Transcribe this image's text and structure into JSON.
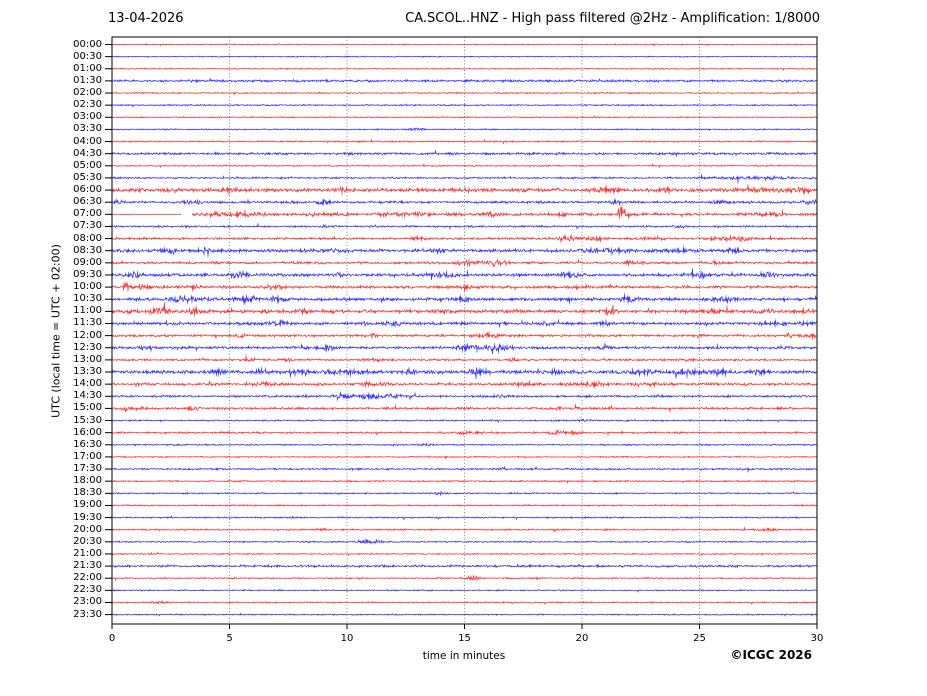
{
  "header": {
    "date": "13-04-2026",
    "title": "CA.SCOL..HNZ - High pass filtered @2Hz - Amplification: 1/8000"
  },
  "footer": {
    "copyright": "©ICGC 2026"
  },
  "chart_data": {
    "type": "line",
    "subtype": "helicorder-24h",
    "title": "CA.SCOL..HNZ - High pass filtered @2Hz - Amplification: 1/8000",
    "xlabel": "time in minutes",
    "ylabel": "UTC (local time = UTC + 02:00)",
    "xlim": [
      0,
      30
    ],
    "x_ticks": [
      "0",
      "5",
      "10",
      "15",
      "20",
      "25",
      "30"
    ],
    "x_tick_values": [
      0,
      5,
      10,
      15,
      20,
      25,
      30
    ],
    "grid": "vertical dotted lines every 5 minutes",
    "legend": "none",
    "colors": {
      "red": "#ff0000",
      "blue": "#0000ff",
      "grid": "#555555",
      "frame": "#000000",
      "text": "#000000"
    },
    "row_minutes": 30,
    "notable_event": {
      "row": "07:00",
      "minute": 21.7,
      "description": "large impulsive spike on the 07:00 UTC trace"
    },
    "rows": [
      {
        "t": "00:00",
        "color": "red",
        "amp": 0.4
      },
      {
        "t": "00:30",
        "color": "blue",
        "amp": 0.4
      },
      {
        "t": "01:00",
        "color": "red",
        "amp": 0.4
      },
      {
        "t": "01:30",
        "color": "blue",
        "amp": 0.8
      },
      {
        "t": "02:00",
        "color": "red",
        "amp": 0.45
      },
      {
        "t": "02:30",
        "color": "blue",
        "amp": 0.5
      },
      {
        "t": "03:00",
        "color": "red",
        "amp": 0.4
      },
      {
        "t": "03:30",
        "color": "blue",
        "amp": 0.45,
        "bursts": [
          [
            13,
            0.3,
            0.7
          ]
        ]
      },
      {
        "t": "04:00",
        "color": "red",
        "amp": 0.5
      },
      {
        "t": "04:30",
        "color": "blue",
        "amp": 0.85
      },
      {
        "t": "05:00",
        "color": "red",
        "amp": 0.45
      },
      {
        "t": "05:30",
        "color": "blue",
        "amp": 0.6,
        "bursts": [
          [
            27.5,
            2.0,
            0.8
          ]
        ]
      },
      {
        "t": "06:00",
        "color": "red",
        "amp": 1.3,
        "bursts": [
          [
            5,
            0.3,
            1.2
          ],
          [
            10,
            0.5,
            0.8
          ],
          [
            15,
            0.3,
            1.0
          ],
          [
            21,
            0.4,
            1.0
          ],
          [
            23.5,
            0.3,
            1.2
          ],
          [
            27.5,
            1.0,
            1.2
          ],
          [
            29.3,
            0.5,
            1.5
          ]
        ]
      },
      {
        "t": "06:30",
        "color": "blue",
        "amp": 0.85,
        "bursts": [
          [
            0.3,
            0.2,
            1.5
          ],
          [
            3.5,
            0.4,
            1.0
          ],
          [
            9,
            0.3,
            0.8
          ],
          [
            21.5,
            0.3,
            0.9
          ],
          [
            26,
            0.5,
            0.8
          ],
          [
            29.6,
            0.4,
            1.2
          ]
        ]
      },
      {
        "t": "07:00",
        "color": "red",
        "amp": 1.05,
        "pre": {
          "until": 3.4,
          "amp": 0.25
        },
        "gap": [
          2.95,
          3.4
        ],
        "bursts": [
          [
            4.5,
            0.5,
            1.2
          ],
          [
            6,
            0.8,
            1.0
          ],
          [
            9,
            0.6,
            1.0
          ],
          [
            12.5,
            1.0,
            0.9
          ],
          [
            16,
            0.5,
            0.8
          ],
          [
            19,
            0.4,
            0.8
          ],
          [
            21.55,
            0.05,
            3.0
          ],
          [
            21.68,
            0.07,
            9.0
          ],
          [
            21.85,
            0.15,
            2.5
          ],
          [
            28,
            0.5,
            0.8
          ]
        ]
      },
      {
        "t": "07:30",
        "color": "blue",
        "amp": 0.65,
        "bursts": [
          [
            9,
            0.3,
            0.7
          ],
          [
            24,
            0.3,
            0.7
          ]
        ]
      },
      {
        "t": "08:00",
        "color": "red",
        "amp": 0.8,
        "bursts": [
          [
            13,
            0.3,
            1.0
          ],
          [
            19.5,
            0.5,
            1.3
          ],
          [
            20.5,
            0.3,
            1.0
          ],
          [
            23,
            0.4,
            1.2
          ],
          [
            26,
            0.6,
            1.4
          ],
          [
            27,
            0.3,
            1.2
          ]
        ]
      },
      {
        "t": "08:30",
        "color": "blue",
        "amp": 1.15,
        "bursts": [
          [
            2.5,
            0.4,
            1.4
          ],
          [
            4,
            0.3,
            1.6
          ],
          [
            9,
            0.5,
            1.2
          ],
          [
            13.8,
            0.3,
            1.3
          ],
          [
            21,
            0.8,
            1.3
          ],
          [
            24,
            0.5,
            1.2
          ],
          [
            26.5,
            0.3,
            1.4
          ]
        ]
      },
      {
        "t": "09:00",
        "color": "red",
        "amp": 0.85,
        "bursts": [
          [
            8,
            0.3,
            0.9
          ],
          [
            15.3,
            0.8,
            1.5
          ],
          [
            16.5,
            0.4,
            1.2
          ],
          [
            22,
            0.4,
            0.9
          ],
          [
            26,
            0.3,
            0.8
          ]
        ]
      },
      {
        "t": "09:30",
        "color": "blue",
        "amp": 1.1,
        "bursts": [
          [
            1,
            0.3,
            1.2
          ],
          [
            5.5,
            0.5,
            1.4
          ],
          [
            9.5,
            0.3,
            1.1
          ],
          [
            14,
            0.6,
            1.3
          ],
          [
            19.5,
            0.4,
            1.4
          ],
          [
            25,
            0.5,
            1.2
          ],
          [
            28,
            0.3,
            1.1
          ]
        ]
      },
      {
        "t": "10:00",
        "color": "red",
        "amp": 1.0,
        "bursts": [
          [
            0.6,
            0.15,
            3.2
          ],
          [
            1.3,
            0.2,
            1.6
          ],
          [
            3.5,
            0.4,
            1.2
          ],
          [
            7,
            0.4,
            1.3
          ],
          [
            15,
            0.4,
            1.1
          ],
          [
            20,
            0.3,
            0.9
          ]
        ]
      },
      {
        "t": "10:30",
        "color": "blue",
        "amp": 1.1,
        "bursts": [
          [
            3,
            0.6,
            1.8
          ],
          [
            5.8,
            0.6,
            1.6
          ],
          [
            7,
            0.3,
            1.2
          ],
          [
            15,
            0.5,
            1.0
          ],
          [
            22,
            0.4,
            1.5
          ],
          [
            26,
            0.5,
            1.2
          ]
        ]
      },
      {
        "t": "11:00",
        "color": "red",
        "amp": 1.25,
        "bursts": [
          [
            2,
            0.5,
            1.4
          ],
          [
            3.5,
            0.4,
            1.3
          ],
          [
            8,
            0.4,
            1.0
          ],
          [
            14,
            0.5,
            1.0
          ],
          [
            21,
            0.5,
            1.1
          ],
          [
            25.5,
            0.4,
            1.0
          ],
          [
            28,
            0.2,
            1.6
          ],
          [
            29.5,
            0.3,
            1.3
          ]
        ]
      },
      {
        "t": "11:30",
        "color": "blue",
        "amp": 1.0,
        "bursts": [
          [
            2.5,
            0.3,
            1.1
          ],
          [
            7,
            0.5,
            1.3
          ],
          [
            12,
            0.4,
            1.0
          ],
          [
            18.5,
            0.4,
            1.1
          ],
          [
            21,
            0.3,
            1.2
          ],
          [
            28,
            0.6,
            1.4
          ],
          [
            29.5,
            0.3,
            1.2
          ]
        ]
      },
      {
        "t": "12:00",
        "color": "red",
        "amp": 0.85,
        "bursts": [
          [
            5.5,
            0.3,
            0.9
          ],
          [
            11,
            0.3,
            0.8
          ],
          [
            16,
            0.6,
            1.2
          ],
          [
            25,
            0.2,
            1.2
          ],
          [
            28.8,
            0.2,
            1.6
          ],
          [
            29.8,
            0.3,
            1.4
          ]
        ]
      },
      {
        "t": "12:30",
        "color": "blue",
        "amp": 0.95,
        "bursts": [
          [
            1.5,
            0.3,
            1.2
          ],
          [
            9,
            0.5,
            1.3
          ],
          [
            15.5,
            1.0,
            1.4
          ],
          [
            16.5,
            0.5,
            1.2
          ],
          [
            21,
            0.3,
            0.9
          ]
        ]
      },
      {
        "t": "13:00",
        "color": "red",
        "amp": 0.75,
        "bursts": [
          [
            6,
            0.3,
            0.9
          ],
          [
            7.5,
            0.3,
            1.0
          ],
          [
            11,
            0.4,
            0.9
          ],
          [
            17,
            0.3,
            0.8
          ],
          [
            24.5,
            0.3,
            0.8
          ]
        ]
      },
      {
        "t": "13:30",
        "color": "blue",
        "amp": 1.2,
        "bursts": [
          [
            4.5,
            0.3,
            1.6
          ],
          [
            6.3,
            0.3,
            1.4
          ],
          [
            8,
            0.5,
            1.3
          ],
          [
            10,
            0.8,
            1.5
          ],
          [
            12.7,
            0.3,
            1.8
          ],
          [
            15.5,
            0.4,
            1.2
          ],
          [
            19,
            0.4,
            1.3
          ],
          [
            22.5,
            0.5,
            1.5
          ],
          [
            24.5,
            0.6,
            1.6
          ],
          [
            25.8,
            0.4,
            1.8
          ],
          [
            27.5,
            0.3,
            1.4
          ]
        ]
      },
      {
        "t": "14:00",
        "color": "red",
        "amp": 0.95,
        "bursts": [
          [
            6.5,
            0.4,
            1.2
          ],
          [
            11,
            0.4,
            1.3
          ],
          [
            17.5,
            0.5,
            1.2
          ],
          [
            20.5,
            0.6,
            1.3
          ],
          [
            23,
            0.4,
            1.1
          ]
        ]
      },
      {
        "t": "14:30",
        "color": "blue",
        "amp": 0.75,
        "bursts": [
          [
            9.7,
            0.3,
            1.5
          ],
          [
            10.8,
            0.6,
            1.8
          ],
          [
            12,
            0.4,
            1.3
          ],
          [
            16.5,
            0.3,
            1.0
          ]
        ]
      },
      {
        "t": "15:00",
        "color": "red",
        "amp": 0.85,
        "bursts": [
          [
            0.5,
            0.2,
            2.2
          ],
          [
            1.1,
            0.3,
            1.4
          ],
          [
            3.5,
            0.3,
            1.2
          ],
          [
            19,
            0.3,
            0.8
          ]
        ]
      },
      {
        "t": "15:30",
        "color": "blue",
        "amp": 0.55,
        "bursts": [
          [
            20,
            0.3,
            0.7
          ]
        ]
      },
      {
        "t": "16:00",
        "color": "red",
        "amp": 0.65,
        "bursts": [
          [
            15,
            0.4,
            0.9
          ],
          [
            19,
            0.4,
            1.4
          ],
          [
            19.7,
            0.2,
            1.1
          ]
        ]
      },
      {
        "t": "16:30",
        "color": "blue",
        "amp": 0.5,
        "bursts": [
          [
            13.5,
            0.3,
            0.8
          ]
        ]
      },
      {
        "t": "17:00",
        "color": "red",
        "amp": 0.45
      },
      {
        "t": "17:30",
        "color": "blue",
        "amp": 0.6
      },
      {
        "t": "18:00",
        "color": "red",
        "amp": 0.5,
        "bursts": [
          [
            5.5,
            0.2,
            0.7
          ]
        ]
      },
      {
        "t": "18:30",
        "color": "blue",
        "amp": 0.5,
        "bursts": [
          [
            14,
            0.3,
            0.7
          ]
        ]
      },
      {
        "t": "19:00",
        "color": "red",
        "amp": 0.5
      },
      {
        "t": "19:30",
        "color": "blue",
        "amp": 0.5
      },
      {
        "t": "20:00",
        "color": "red",
        "amp": 0.5,
        "bursts": [
          [
            9,
            0.3,
            0.6
          ],
          [
            27.8,
            0.4,
            0.9
          ]
        ]
      },
      {
        "t": "20:30",
        "color": "blue",
        "amp": 0.5,
        "bursts": [
          [
            10.8,
            0.25,
            1.4
          ],
          [
            11.3,
            0.2,
            1.0
          ]
        ]
      },
      {
        "t": "21:00",
        "color": "red",
        "amp": 0.45
      },
      {
        "t": "21:30",
        "color": "blue",
        "amp": 0.8
      },
      {
        "t": "22:00",
        "color": "red",
        "amp": 0.5,
        "bursts": [
          [
            15.3,
            0.25,
            1.7
          ]
        ]
      },
      {
        "t": "22:30",
        "color": "blue",
        "amp": 0.45
      },
      {
        "t": "23:00",
        "color": "red",
        "amp": 0.5,
        "bursts": [
          [
            2,
            0.3,
            0.8
          ]
        ]
      },
      {
        "t": "23:30",
        "color": "blue",
        "amp": 0.45
      }
    ]
  }
}
